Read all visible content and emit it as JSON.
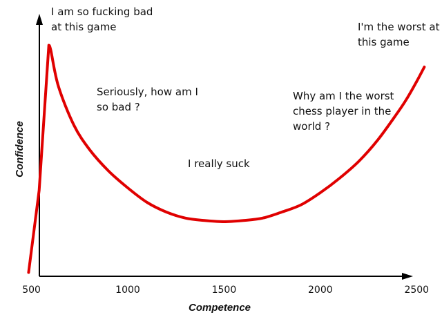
{
  "chart_data": {
    "type": "line",
    "xlabel": "Competence",
    "ylabel": "Confidence",
    "x_ticks": [
      500,
      1000,
      1500,
      2000,
      2500
    ],
    "xlim": [
      480,
      2560
    ],
    "series": [
      {
        "color": "#e00000",
        "points": [
          [
            485,
            0.01
          ],
          [
            540,
            0.35
          ],
          [
            590,
            0.95
          ],
          [
            600,
            0.93
          ],
          [
            640,
            0.78
          ],
          [
            720,
            0.62
          ],
          [
            800,
            0.52
          ],
          [
            900,
            0.43
          ],
          [
            1000,
            0.36
          ],
          [
            1100,
            0.3
          ],
          [
            1200,
            0.26
          ],
          [
            1300,
            0.235
          ],
          [
            1400,
            0.225
          ],
          [
            1500,
            0.22
          ],
          [
            1600,
            0.225
          ],
          [
            1700,
            0.235
          ],
          [
            1800,
            0.26
          ],
          [
            1900,
            0.29
          ],
          [
            2000,
            0.34
          ],
          [
            2100,
            0.4
          ],
          [
            2200,
            0.47
          ],
          [
            2300,
            0.56
          ],
          [
            2400,
            0.67
          ],
          [
            2450,
            0.73
          ],
          [
            2500,
            0.8
          ],
          [
            2540,
            0.86
          ]
        ]
      }
    ],
    "annotations": [
      {
        "lines": [
          "I am so fucking bad",
          "at this game"
        ]
      },
      {
        "lines": [
          "Seriously, how am I",
          "so bad ?"
        ]
      },
      {
        "lines": [
          "I really suck"
        ]
      },
      {
        "lines": [
          "Why am I the worst",
          "chess player in the",
          "world ?"
        ]
      },
      {
        "lines": [
          "I'm the worst at",
          "this game"
        ]
      }
    ]
  }
}
